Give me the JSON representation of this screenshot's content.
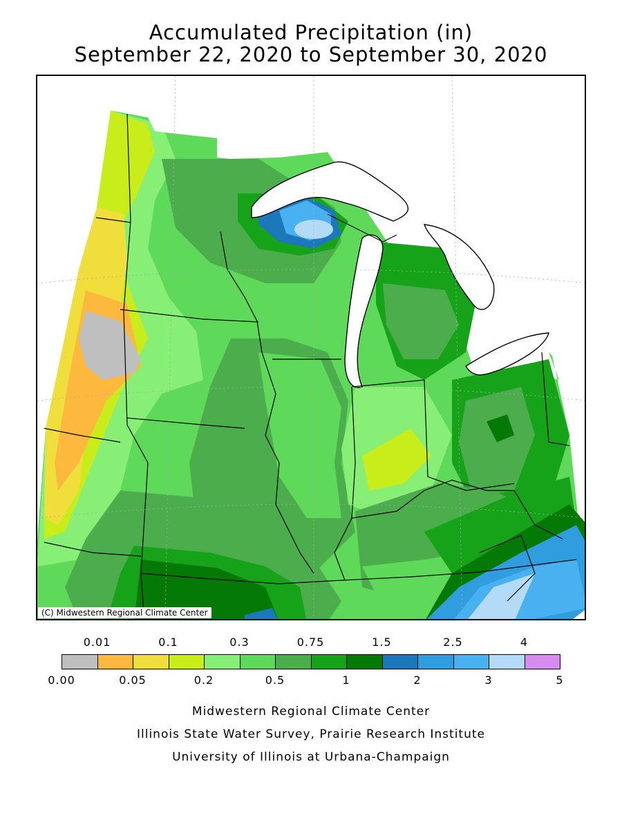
{
  "title": {
    "line1": "Accumulated Precipitation (in)",
    "line2": "September 22, 2020 to September 30, 2020"
  },
  "map": {
    "region": "Midwestern United States",
    "credit": "(C) Midwestern Regional Climate Center",
    "water_color": "#ffffff",
    "border_color": "#000000"
  },
  "legend": {
    "top_labels": [
      "0.01",
      "0.1",
      "0.3",
      "0.75",
      "1.5",
      "2.5",
      "4"
    ],
    "bottom_labels": [
      "0.00",
      "0.05",
      "0.2",
      "0.5",
      "1",
      "2",
      "3",
      "5"
    ],
    "bins": [
      {
        "range": "0.00-0.01",
        "color": "#bfbfbf"
      },
      {
        "range": "0.01-0.05",
        "color": "#fdb93e"
      },
      {
        "range": "0.05-0.1",
        "color": "#f0de3d"
      },
      {
        "range": "0.1-0.2",
        "color": "#c9ed1a"
      },
      {
        "range": "0.2-0.3",
        "color": "#87ef75"
      },
      {
        "range": "0.3-0.5",
        "color": "#5fd95a"
      },
      {
        "range": "0.5-0.75",
        "color": "#4cad4c"
      },
      {
        "range": "0.75-1",
        "color": "#16a31a"
      },
      {
        "range": "1-1.5",
        "color": "#057905"
      },
      {
        "range": "1.5-2",
        "color": "#1d77bb"
      },
      {
        "range": "2-2.5",
        "color": "#309ddf"
      },
      {
        "range": "2.5-3",
        "color": "#49b1ef"
      },
      {
        "range": "3-4",
        "color": "#b3dbf8"
      },
      {
        "range": "4-5",
        "color": "#d68ced"
      }
    ]
  },
  "footer": {
    "line1": "Midwestern Regional Climate Center",
    "line2": "Illinois State Water Survey, Prairie Research Institute",
    "line3": "University of Illinois at Urbana-Champaign"
  }
}
